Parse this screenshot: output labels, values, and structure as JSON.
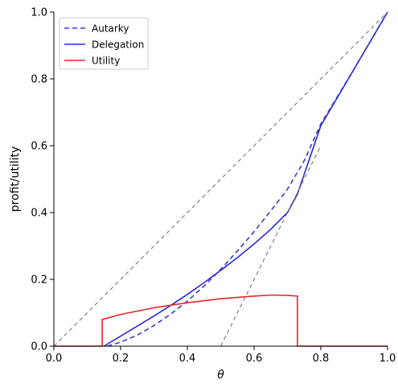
{
  "chart_data": {
    "type": "line",
    "xlabel": "θ",
    "ylabel": "profit/utility",
    "xlim": [
      0.0,
      1.0
    ],
    "ylim": [
      0.0,
      1.0
    ],
    "x_ticks": [
      "0.0",
      "0.2",
      "0.4",
      "0.6",
      "0.8",
      "1.0"
    ],
    "y_ticks": [
      "0.0",
      "0.2",
      "0.4",
      "0.6",
      "0.8",
      "1.0"
    ],
    "grid": false,
    "legend_position": "top-left",
    "legend": [
      {
        "name": "Autarky",
        "color": "#3a3ad8",
        "style": "dashed"
      },
      {
        "name": "Delegation",
        "color": "#2a2ad8",
        "style": "solid"
      },
      {
        "name": "Utility",
        "color": "#e8262a",
        "style": "solid"
      }
    ],
    "series": [
      {
        "name": "Autarky",
        "color": "#3a3ad8",
        "style": "dashed",
        "points": [
          [
            0.16,
            0.0
          ],
          [
            0.2,
            0.012
          ],
          [
            0.25,
            0.033
          ],
          [
            0.3,
            0.062
          ],
          [
            0.35,
            0.096
          ],
          [
            0.4,
            0.135
          ],
          [
            0.45,
            0.18
          ],
          [
            0.5,
            0.23
          ],
          [
            0.55,
            0.285
          ],
          [
            0.6,
            0.343
          ],
          [
            0.65,
            0.405
          ],
          [
            0.7,
            0.47
          ],
          [
            0.75,
            0.555
          ],
          [
            0.8,
            0.665
          ],
          [
            0.9,
            0.83
          ],
          [
            1.0,
            1.0
          ]
        ]
      },
      {
        "name": "Delegation",
        "color": "#2a2ad8",
        "style": "solid",
        "points": [
          [
            0.15,
            0.0
          ],
          [
            0.2,
            0.03
          ],
          [
            0.25,
            0.06
          ],
          [
            0.3,
            0.09
          ],
          [
            0.35,
            0.122
          ],
          [
            0.4,
            0.155
          ],
          [
            0.45,
            0.19
          ],
          [
            0.5,
            0.227
          ],
          [
            0.55,
            0.265
          ],
          [
            0.6,
            0.306
          ],
          [
            0.65,
            0.35
          ],
          [
            0.7,
            0.4
          ],
          [
            0.73,
            0.455
          ],
          [
            0.8,
            0.66
          ],
          [
            0.9,
            0.83
          ],
          [
            1.0,
            1.0
          ]
        ]
      },
      {
        "name": "Utility",
        "color": "#e8262a",
        "style": "solid",
        "points": [
          [
            0.0,
            0.0
          ],
          [
            0.145,
            0.0
          ],
          [
            0.145,
            0.08
          ],
          [
            0.2,
            0.095
          ],
          [
            0.3,
            0.115
          ],
          [
            0.4,
            0.13
          ],
          [
            0.5,
            0.142
          ],
          [
            0.6,
            0.15
          ],
          [
            0.65,
            0.153
          ],
          [
            0.7,
            0.152
          ],
          [
            0.73,
            0.15
          ],
          [
            0.73,
            0.0
          ],
          [
            1.0,
            0.0
          ]
        ]
      },
      {
        "name": "",
        "color": "#777777",
        "style": "dashed",
        "points": [
          [
            0.0,
            0.0
          ],
          [
            1.0,
            1.0
          ]
        ]
      },
      {
        "name": "",
        "color": "#777777",
        "style": "dashed",
        "points": [
          [
            0.5,
            0.0
          ],
          [
            0.8,
            0.6
          ]
        ]
      }
    ]
  }
}
